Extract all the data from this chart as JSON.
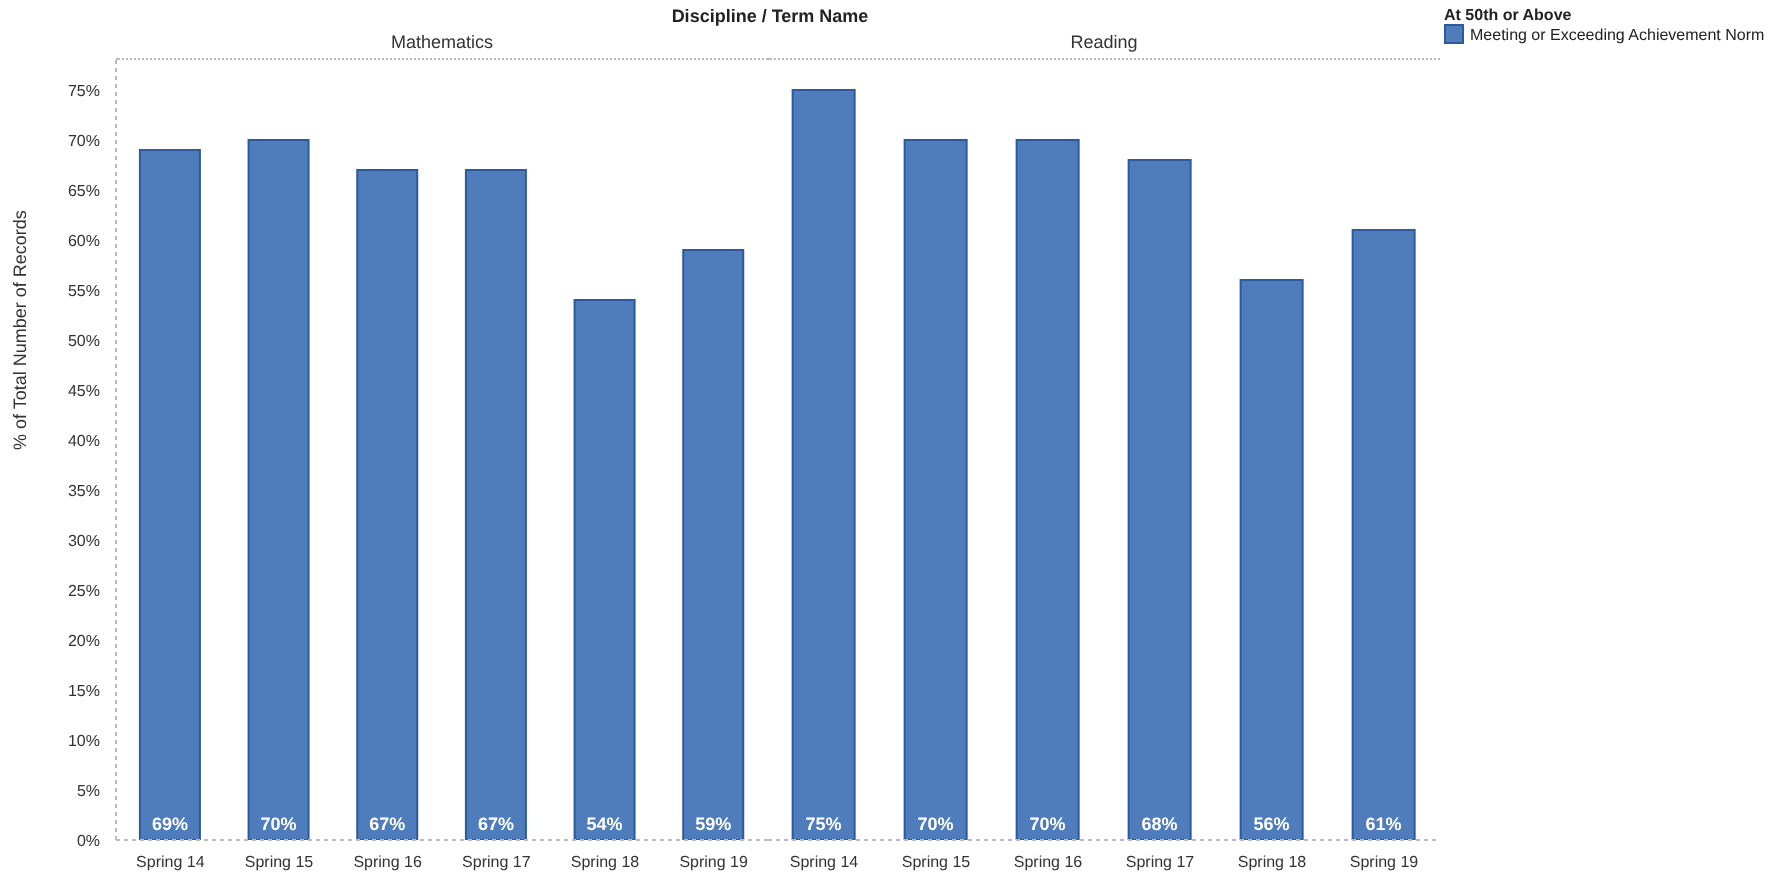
{
  "chart_data": [
    {
      "type": "bar",
      "title": "Discipline / Term Name",
      "subtitle": "Mathematics",
      "categories": [
        "Spring 14",
        "Spring 15",
        "Spring 16",
        "Spring 17",
        "Spring 18",
        "Spring 19"
      ],
      "series": [
        {
          "color": "#4f7cba",
          "values": [
            69,
            70,
            67,
            67,
            54,
            59
          ],
          "value_labels": [
            "69%",
            "70%",
            "67%",
            "67%",
            "54%",
            "59%"
          ]
        }
      ],
      "ylabel": "% of Total Number of Records",
      "ylim": [
        0,
        78
      ],
      "yticks": [
        {
          "value": 0,
          "label": "0%"
        },
        {
          "value": 5,
          "label": "5%"
        },
        {
          "value": 10,
          "label": "10%"
        },
        {
          "value": 15,
          "label": "15%"
        },
        {
          "value": 20,
          "label": "20%"
        },
        {
          "value": 25,
          "label": "25%"
        },
        {
          "value": 30,
          "label": "30%"
        },
        {
          "value": 35,
          "label": "35%"
        },
        {
          "value": 40,
          "label": "40%"
        },
        {
          "value": 45,
          "label": "45%"
        },
        {
          "value": 50,
          "label": "50%"
        },
        {
          "value": 55,
          "label": "55%"
        },
        {
          "value": 60,
          "label": "60%"
        },
        {
          "value": 65,
          "label": "65%"
        },
        {
          "value": 70,
          "label": "70%"
        },
        {
          "value": 75,
          "label": "75%"
        }
      ]
    },
    {
      "type": "bar",
      "subtitle": "Reading",
      "categories": [
        "Spring 14",
        "Spring 15",
        "Spring 16",
        "Spring 17",
        "Spring 18",
        "Spring 19"
      ],
      "series": [
        {
          "name": "Meeting or Exceeding Achievement Norm",
          "color": "#4f7cba",
          "values": [
            75,
            70,
            70,
            68,
            56,
            61
          ],
          "value_labels": [
            "75%",
            "70%",
            "70%",
            "68%",
            "56%",
            "61%"
          ]
        }
      ],
      "ylim": [
        0,
        78
      ],
      "tick_labels": "x",
      "legend": "top right",
      "legend_title": "At 50th or Above"
    }
  ]
}
